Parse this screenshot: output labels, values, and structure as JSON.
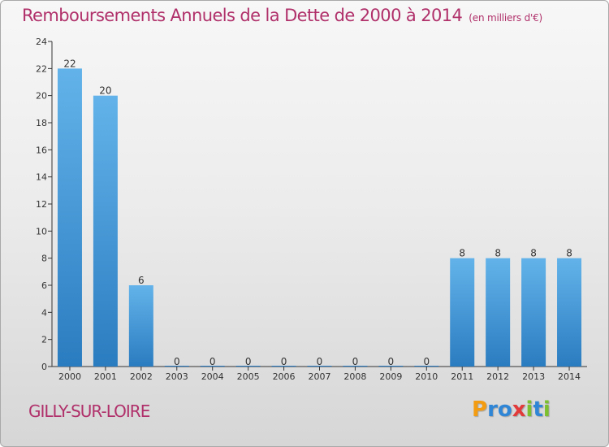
{
  "chart_data": {
    "type": "bar",
    "title": "Remboursements Annuels de la Dette de 2000 à 2014",
    "subtitle": "(en milliers d'€)",
    "categories": [
      "2000",
      "2001",
      "2002",
      "2003",
      "2004",
      "2005",
      "2006",
      "2007",
      "2008",
      "2009",
      "2010",
      "2011",
      "2012",
      "2013",
      "2014"
    ],
    "values": [
      22,
      20,
      6,
      0,
      0,
      0,
      0,
      0,
      0,
      0,
      0,
      8,
      8,
      8,
      8
    ],
    "ylim": [
      0,
      24
    ],
    "yticks": [
      0,
      2,
      4,
      6,
      8,
      10,
      12,
      14,
      16,
      18,
      20,
      22,
      24
    ],
    "xlabel": "",
    "ylabel": "",
    "grid": false,
    "colors": {
      "bar_light": "#63b3ea",
      "bar_dark": "#2a7cc0",
      "axis": "#333333",
      "title": "#b0306a"
    }
  },
  "footer": {
    "commune": "GILLY-SUR-LOIRE"
  },
  "logo": {
    "text": "Proxiti",
    "letters": [
      {
        "char": "P",
        "color": "#f39c12"
      },
      {
        "char": "r",
        "color": "#2f86d6"
      },
      {
        "char": "o",
        "color": "#2f86d6"
      },
      {
        "char": "x",
        "color": "#e23a3a"
      },
      {
        "char": "i",
        "color": "#7cbf2f"
      },
      {
        "char": "t",
        "color": "#2f86d6"
      },
      {
        "char": "i",
        "color": "#7cbf2f"
      }
    ]
  }
}
